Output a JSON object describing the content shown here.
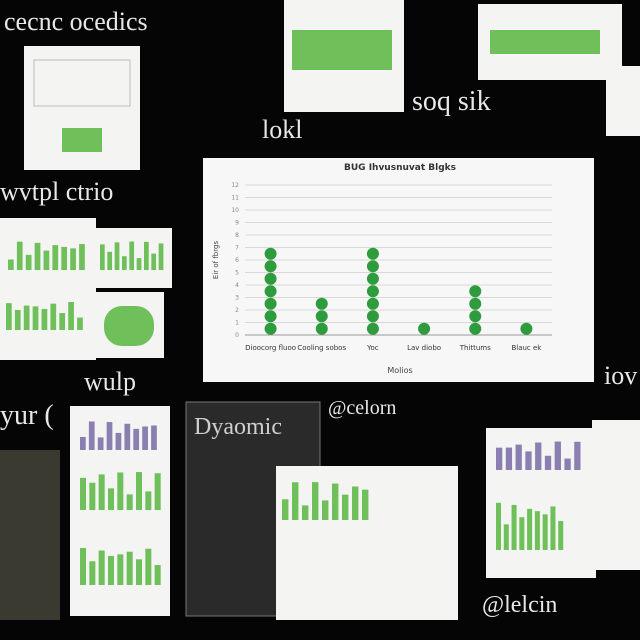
{
  "board": {
    "texts": [
      "cecnc ocedics",
      "wvtpl ctrio",
      "soq sik",
      "lokl",
      "wulp",
      "yur (",
      "@celorn",
      "Dyaomic",
      "iov",
      "@lelcin"
    ]
  },
  "chart_data": {
    "type": "dot",
    "title": "BUG Ihvusnuvat Blgks",
    "x_label": "Molios",
    "y_label": "Eir of fbrgs",
    "categories": [
      "Dioocorg fluoo",
      "Cooling sobos",
      "Yoc",
      "Lav diobo",
      "Thittums",
      "Blauc ek"
    ],
    "values": [
      7,
      3,
      7,
      1,
      4,
      1
    ],
    "color": "#2e9b3c",
    "ylim": [
      0,
      12
    ],
    "yticks": [
      0,
      1,
      2,
      3,
      4,
      5,
      6,
      7,
      8,
      9,
      10,
      11,
      12
    ],
    "grid": true
  }
}
